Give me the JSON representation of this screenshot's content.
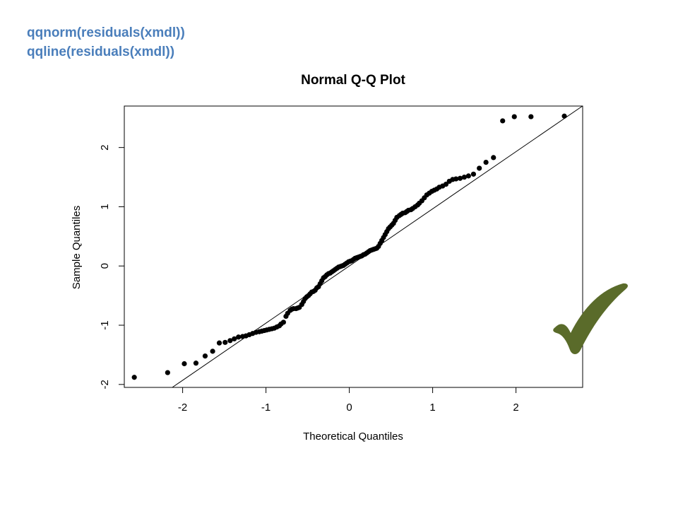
{
  "code_lines": [
    "qqnorm(residuals(xmdl))",
    "qqline(residuals(xmdl))"
  ],
  "colors": {
    "code": "#4a7ebb",
    "points": "#000000",
    "check": "#5a6b2a"
  },
  "icons": {
    "check": "checkmark-icon"
  },
  "chart_data": {
    "type": "scatter",
    "title": "Normal Q-Q Plot",
    "xlabel": "Theoretical Quantiles",
    "ylabel": "Sample Quantiles",
    "xlim": [
      -2.7,
      2.8
    ],
    "ylim": [
      -2.05,
      2.7
    ],
    "xticks": [
      -2,
      -1,
      0,
      1,
      2
    ],
    "yticks": [
      -2,
      -1,
      0,
      1,
      2
    ],
    "reference_line": {
      "slope": 0.965,
      "intercept": 0.0
    },
    "series": [
      {
        "x": [
          -2.58,
          -2.18,
          -1.98,
          -1.84,
          -1.73,
          -1.64,
          -1.56,
          -1.49,
          -1.43,
          -1.38,
          -1.33,
          -1.28,
          -1.24,
          -1.2,
          -1.16,
          -1.12,
          -1.08,
          -1.05,
          -1.02,
          -0.99,
          -0.96,
          -0.93,
          -0.9,
          -0.87,
          -0.84,
          -0.82,
          -0.79,
          -0.76,
          -0.74,
          -0.71,
          -0.69,
          -0.67,
          -0.64,
          -0.62,
          -0.6,
          -0.57,
          -0.55,
          -0.53,
          -0.51,
          -0.49,
          -0.47,
          -0.45,
          -0.43,
          -0.41,
          -0.39,
          -0.37,
          -0.35,
          -0.33,
          -0.31,
          -0.29,
          -0.27,
          -0.25,
          -0.23,
          -0.21,
          -0.19,
          -0.17,
          -0.15,
          -0.13,
          -0.11,
          -0.09,
          -0.07,
          -0.05,
          -0.03,
          -0.01,
          0.01,
          0.03,
          0.05,
          0.07,
          0.09,
          0.11,
          0.13,
          0.15,
          0.17,
          0.19,
          0.21,
          0.23,
          0.25,
          0.27,
          0.29,
          0.31,
          0.33,
          0.35,
          0.37,
          0.39,
          0.41,
          0.43,
          0.45,
          0.47,
          0.49,
          0.51,
          0.53,
          0.55,
          0.57,
          0.6,
          0.62,
          0.64,
          0.67,
          0.69,
          0.71,
          0.74,
          0.76,
          0.79,
          0.82,
          0.84,
          0.87,
          0.9,
          0.93,
          0.96,
          0.99,
          1.02,
          1.05,
          1.08,
          1.12,
          1.16,
          1.2,
          1.24,
          1.28,
          1.33,
          1.38,
          1.43,
          1.49,
          1.56,
          1.64,
          1.73,
          1.84,
          1.98,
          2.18,
          2.58
        ],
        "y": [
          -1.88,
          -1.8,
          -1.65,
          -1.64,
          -1.52,
          -1.44,
          -1.3,
          -1.29,
          -1.26,
          -1.23,
          -1.2,
          -1.19,
          -1.18,
          -1.16,
          -1.14,
          -1.12,
          -1.11,
          -1.1,
          -1.09,
          -1.08,
          -1.07,
          -1.06,
          -1.05,
          -1.03,
          -1.01,
          -0.98,
          -0.95,
          -0.85,
          -0.8,
          -0.75,
          -0.73,
          -0.72,
          -0.72,
          -0.71,
          -0.7,
          -0.65,
          -0.6,
          -0.55,
          -0.52,
          -0.5,
          -0.47,
          -0.44,
          -0.43,
          -0.41,
          -0.37,
          -0.35,
          -0.3,
          -0.25,
          -0.2,
          -0.18,
          -0.15,
          -0.13,
          -0.12,
          -0.1,
          -0.08,
          -0.06,
          -0.04,
          -0.02,
          -0.01,
          0.0,
          0.01,
          0.03,
          0.05,
          0.07,
          0.08,
          0.09,
          0.11,
          0.13,
          0.14,
          0.15,
          0.16,
          0.17,
          0.19,
          0.2,
          0.22,
          0.24,
          0.26,
          0.27,
          0.28,
          0.29,
          0.3,
          0.33,
          0.38,
          0.43,
          0.48,
          0.53,
          0.58,
          0.63,
          0.66,
          0.69,
          0.72,
          0.77,
          0.82,
          0.85,
          0.87,
          0.89,
          0.9,
          0.92,
          0.94,
          0.95,
          0.97,
          1.0,
          1.03,
          1.06,
          1.1,
          1.15,
          1.2,
          1.23,
          1.26,
          1.28,
          1.3,
          1.33,
          1.35,
          1.38,
          1.43,
          1.46,
          1.47,
          1.48,
          1.5,
          1.52,
          1.55,
          1.65,
          1.75,
          1.83,
          2.45,
          2.52,
          2.52,
          2.53
        ]
      }
    ]
  }
}
